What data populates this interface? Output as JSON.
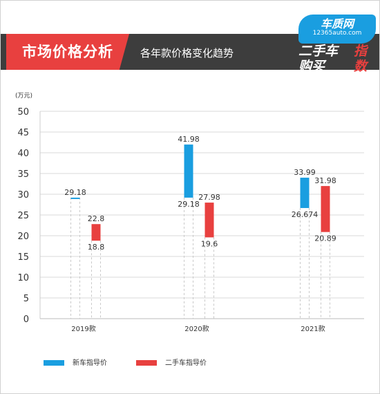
{
  "header": {
    "title": "市场价格分析",
    "subtitle": "各年款价格变化趋势"
  },
  "logo": {
    "brand": "车质网",
    "url": "12365auto.com",
    "line1": "二手车",
    "line2": "购买",
    "red1": "指",
    "red2": "数"
  },
  "colors": {
    "new_car": "#1a9ee0",
    "used_car": "#e8403f"
  },
  "chart_data": {
    "type": "bar",
    "subtype": "floating-range",
    "yunit": "(万元)",
    "ylim": [
      0,
      50
    ],
    "yticks": [
      0,
      5,
      10,
      15,
      20,
      25,
      30,
      35,
      40,
      45,
      50
    ],
    "categories": [
      "2019款",
      "2020款",
      "2021款"
    ],
    "grid": true,
    "legend_position": "bottom-left",
    "series": [
      {
        "name": "新车指导价",
        "color": "#1a9ee0",
        "ranges": [
          [
            29.18,
            29.18
          ],
          [
            29.18,
            41.98
          ],
          [
            26.674,
            33.99
          ]
        ],
        "label_high": [
          "29.18",
          "41.98",
          "33.99"
        ],
        "label_low": [
          "",
          "29.18",
          "26.674"
        ]
      },
      {
        "name": "二手车指导价",
        "color": "#e8403f",
        "ranges": [
          [
            18.8,
            22.8
          ],
          [
            19.6,
            27.98
          ],
          [
            20.89,
            31.98
          ]
        ],
        "label_high": [
          "22.8",
          "27.98",
          "31.98"
        ],
        "label_low": [
          "18.8",
          "19.6",
          "20.89"
        ]
      }
    ]
  }
}
